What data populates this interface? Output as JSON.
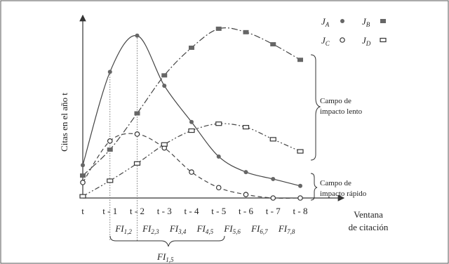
{
  "chart_data": {
    "type": "line",
    "ylabel": "Citas en el año t",
    "xlabel": [
      "Ventana",
      "de citación"
    ],
    "categories": [
      "t",
      "t - 1",
      "t - 2",
      "t - 3",
      "t - 4",
      "t - 5",
      "t - 6",
      "t - 7",
      "t - 8"
    ],
    "grid": false,
    "y_unit_note": "relative citation level, 0 = x-axis, 100 = top of plot",
    "series": [
      {
        "name": "J_A",
        "label_main": "J",
        "label_sub": "A",
        "marker": "filled-circle",
        "line": "solid",
        "values": [
          19,
          73,
          94,
          65,
          44,
          24,
          15,
          11,
          7
        ]
      },
      {
        "name": "J_B",
        "label_main": "J",
        "label_sub": "B",
        "marker": "filled-square",
        "line": "dash-dot",
        "values": [
          13,
          28,
          49,
          71,
          87,
          98,
          96,
          89,
          80
        ]
      },
      {
        "name": "J_C",
        "label_main": "J",
        "label_sub": "C",
        "marker": "open-circle",
        "line": "dashed",
        "values": [
          9,
          33,
          37,
          29,
          15,
          6,
          2,
          0,
          0
        ]
      },
      {
        "name": "J_D",
        "label_main": "J",
        "label_sub": "D",
        "marker": "open-square",
        "line": "dash-dot-dot",
        "values": [
          1,
          10,
          20,
          31,
          39,
          43,
          41,
          34,
          27
        ]
      }
    ],
    "legend_position": "top-right",
    "annotations": {
      "slow_field": [
        "Campo de",
        "impacto lento"
      ],
      "fast_field": [
        "Campo de",
        "impacto rápido"
      ]
    },
    "fi_labels": [
      {
        "main": "FI",
        "sub": "1,2"
      },
      {
        "main": "FI",
        "sub": "2,3"
      },
      {
        "main": "FI",
        "sub": "3,4"
      },
      {
        "main": "FI",
        "sub": "4,5"
      },
      {
        "main": "FI",
        "sub": "5,6"
      },
      {
        "main": "FI",
        "sub": "6,7"
      },
      {
        "main": "FI",
        "sub": "7,8"
      }
    ],
    "fi_group": {
      "main": "FI",
      "sub": "1,5"
    }
  }
}
